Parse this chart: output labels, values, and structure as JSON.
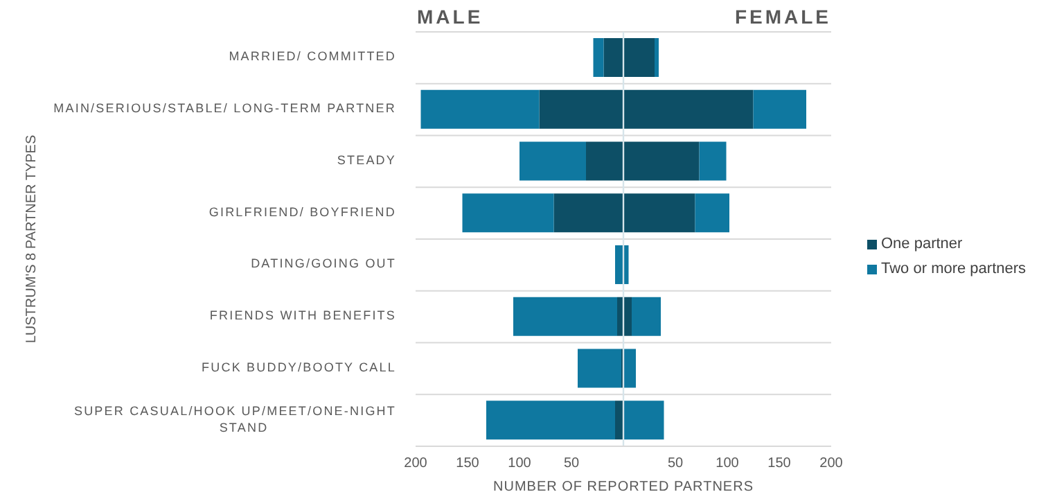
{
  "chart_data": {
    "type": "bar",
    "orientation": "horizontal",
    "stacked": true,
    "annotations": [
      "MALE",
      "FEMALE"
    ],
    "xlabel": "NUMBER OF REPORTED PARTNERS",
    "ylabel": "LUSTRUM'S 8 PARTNER TYPES",
    "categories": [
      "MARRIED/ COMMITTED",
      "MAIN/SERIOUS/STABLE/ LONG-TERM PARTNER",
      "STEADY",
      "GIRLFRIEND/ BOYFRIEND",
      "DATING/GOING OUT",
      "FRIENDS WITH BENEFITS",
      "FUCK BUDDY/BOOTY CALL",
      "SUPER CASUAL/HOOK UP/MEET/ONE-NIGHT STAND"
    ],
    "series": [
      {
        "name": "One partner",
        "color": "#0d4f66",
        "values": [
          -19,
          -81,
          -36,
          -67,
          0,
          -6,
          -2,
          -8
        ]
      },
      {
        "name": "Two or more partners",
        "color": "#0f78a0",
        "values": [
          -10,
          -114,
          -64,
          -88,
          -8,
          -100,
          -42,
          -124
        ]
      },
      {
        "color": "#0d4f66",
        "values": [
          30,
          125,
          73,
          69,
          0,
          8,
          0,
          0
        ]
      },
      {
        "color": "#0f78a0",
        "values": [
          4,
          51,
          26,
          33,
          5,
          28,
          12,
          39
        ]
      }
    ],
    "xlim": [
      -200,
      200
    ],
    "xticks": [
      {
        "value": -200,
        "label": "200"
      },
      {
        "value": -150,
        "label": "150"
      },
      {
        "value": -100,
        "label": "100"
      },
      {
        "value": -50,
        "label": "50"
      },
      {
        "value": 0,
        "label": null
      },
      {
        "value": 50,
        "label": "50"
      },
      {
        "value": 100,
        "label": "100"
      },
      {
        "value": 150,
        "label": "150"
      },
      {
        "value": 200,
        "label": "200"
      }
    ],
    "ref_lines": [
      {
        "axis": "x",
        "value": 0,
        "color": "#d6e4ea"
      }
    ],
    "grid": "y",
    "legend": "right"
  }
}
